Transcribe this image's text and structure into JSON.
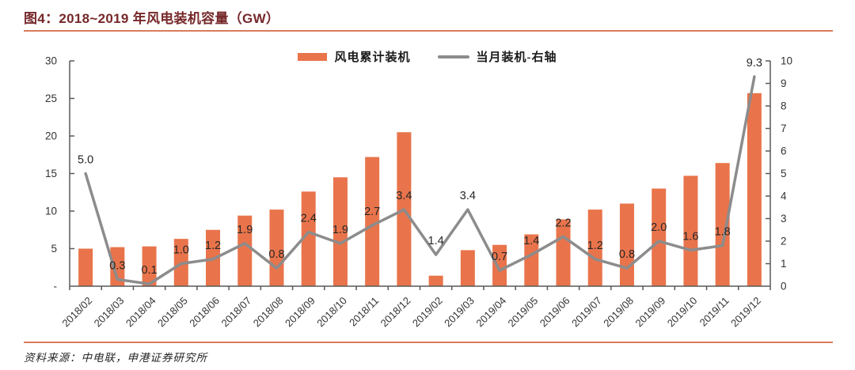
{
  "figure": {
    "label": "图4：",
    "title": "2018~2019 年风电装机容量（GW）",
    "source_label": "资料来源：",
    "source_text": "中电联，申港证券研究所"
  },
  "colors": {
    "bar": "#e9744b",
    "line": "#8c8c8c",
    "title_text": "#76282a",
    "divider": "#d87b5a",
    "axis_line": "#595959",
    "axis_text": "#333333",
    "data_label_text": "#262626"
  },
  "chart_data": {
    "type": "bar",
    "subtype": "combo-bar-line-dual-axis",
    "title": "2018~2019 年风电装机容量（GW）",
    "grid": false,
    "legend_position": "top-center",
    "categories": [
      "2018/02",
      "2018/03",
      "2018/04",
      "2018/05",
      "2018/06",
      "2018/07",
      "2018/08",
      "2018/09",
      "2018/10",
      "2018/11",
      "2018/12",
      "2019/02",
      "2019/03",
      "2019/04",
      "2019/05",
      "2019/06",
      "2019/07",
      "2019/08",
      "2019/09",
      "2019/10",
      "2019/11",
      "2019/12"
    ],
    "series": [
      {
        "name": "风电累计装机",
        "type": "bar",
        "axis": "left",
        "values": [
          5.0,
          5.2,
          5.3,
          6.3,
          7.5,
          9.4,
          10.2,
          12.6,
          14.5,
          17.2,
          20.5,
          1.4,
          4.8,
          5.5,
          6.9,
          8.9,
          10.2,
          11.0,
          13.0,
          14.7,
          16.4,
          25.7
        ]
      },
      {
        "name": "当月装机-右轴",
        "type": "line",
        "axis": "right",
        "values": [
          5.0,
          0.3,
          0.1,
          1.0,
          1.2,
          1.9,
          0.8,
          2.4,
          1.9,
          2.7,
          3.4,
          1.4,
          3.4,
          0.7,
          1.4,
          2.2,
          1.2,
          0.8,
          2.0,
          1.6,
          1.8,
          9.3
        ],
        "point_labels": [
          "5.0",
          "0.3",
          "0.1",
          "1.0",
          "1.2",
          "1.9",
          "0.8",
          "2.4",
          "1.9",
          "2.7",
          "3.4",
          "1.4",
          "3.4",
          "0.7",
          "1.4",
          "2.2",
          "1.2",
          "0.8",
          "2.0",
          "1.6",
          "1.8",
          "9.3"
        ]
      }
    ],
    "left_axis": {
      "min": 0,
      "max": 30,
      "tick_step": 5,
      "tick_labels": [
        "-",
        "5",
        "10",
        "15",
        "20",
        "25",
        "30"
      ]
    },
    "right_axis": {
      "min": 0,
      "max": 10,
      "tick_step": 1,
      "tick_labels": [
        "0",
        "1",
        "2",
        "3",
        "4",
        "5",
        "6",
        "7",
        "8",
        "9",
        "10"
      ]
    }
  }
}
